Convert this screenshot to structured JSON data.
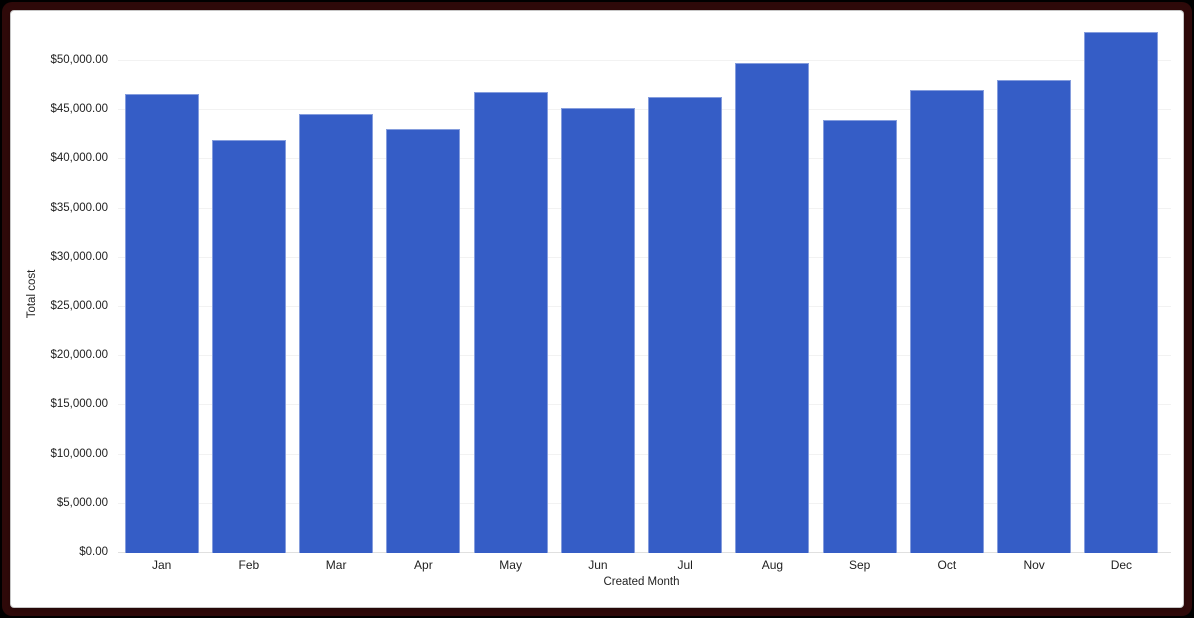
{
  "frame": {
    "outer_background": "#000000",
    "border_color": "#2e0909",
    "card_background": "#ffffff"
  },
  "chart_data": {
    "type": "bar",
    "title": "",
    "categories": [
      "Jan",
      "Feb",
      "Mar",
      "Apr",
      "May",
      "Jun",
      "Jul",
      "Aug",
      "Sep",
      "Oct",
      "Nov",
      "Dec"
    ],
    "values": [
      46600,
      42000,
      44600,
      43100,
      46900,
      45250,
      46300,
      49750,
      44050,
      47050,
      48050,
      52900
    ],
    "xlabel": "Created Month",
    "ylabel": "Total cost",
    "ylim": [
      0,
      53150
    ],
    "axis_max_tick": 50000,
    "y_ticks": [
      {
        "value": 0,
        "label": "$0.00"
      },
      {
        "value": 5000,
        "label": "$5,000.00"
      },
      {
        "value": 10000,
        "label": "$10,000.00"
      },
      {
        "value": 15000,
        "label": "$15,000.00"
      },
      {
        "value": 20000,
        "label": "$20,000.00"
      },
      {
        "value": 25000,
        "label": "$25,000.00"
      },
      {
        "value": 30000,
        "label": "$30,000.00"
      },
      {
        "value": 35000,
        "label": "$35,000.00"
      },
      {
        "value": 40000,
        "label": "$40,000.00"
      },
      {
        "value": 45000,
        "label": "$45,000.00"
      },
      {
        "value": 50000,
        "label": "$50,000.00"
      }
    ],
    "grid": true,
    "legend": "none",
    "bar_color": "#355dc6",
    "gridline_color": "#f2f2f2",
    "baseline_color": "#e0e0e0",
    "label_color": "#1f1f1f"
  }
}
